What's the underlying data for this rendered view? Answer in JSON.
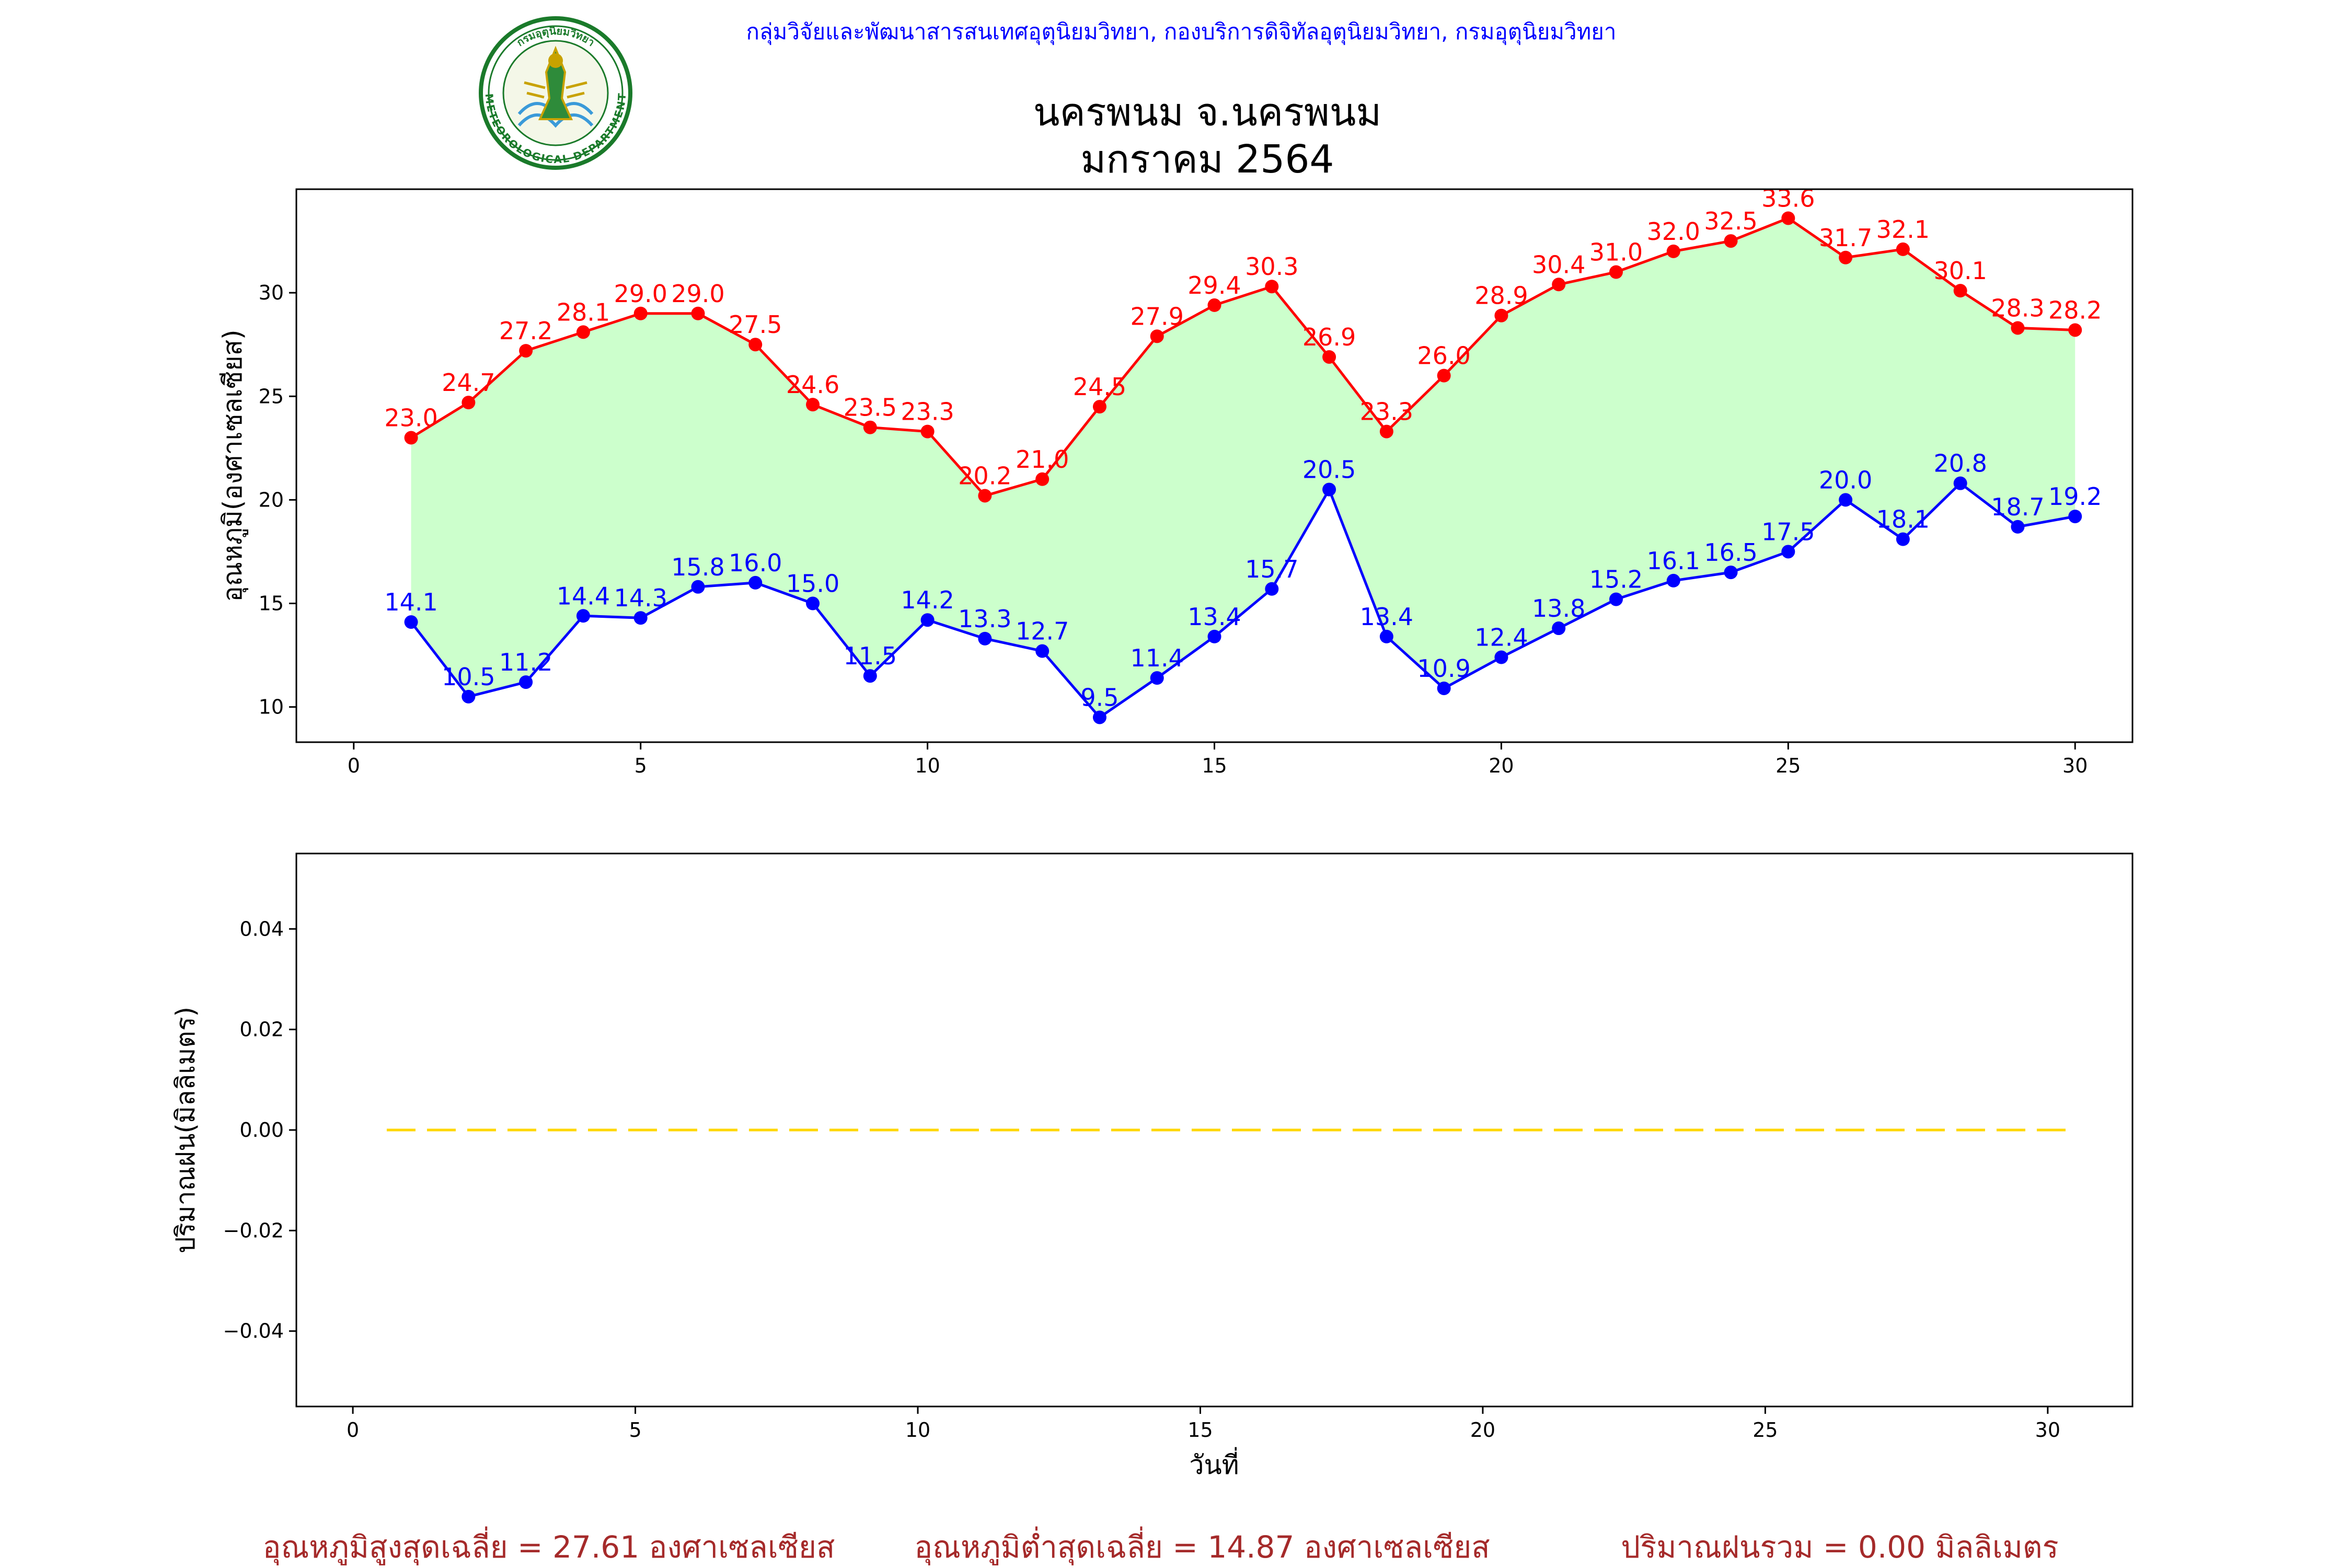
{
  "header": {
    "credit": "กลุ่มวิจัยและพัฒนาสารสนเทศอุตุนิยมวิทยา, กองบริการดิจิทัลอุตุนิยมวิทยา, กรมอุตุนิยมวิทยา",
    "title_line1": "นครพนม จ.นครพนม",
    "title_line2": "มกราคม 2564",
    "logo_top_text": "กรมอุตุนิยมวิทยา",
    "logo_bottom_text": "METEOROLOGICAL DEPARTMENT"
  },
  "colors": {
    "max_line": "#ff0000",
    "min_line": "#0000ff",
    "fill_between": "#ccffcc",
    "rain_line": "#ffd700",
    "footer_text": "#a52a2a",
    "credit_text": "#0000ff"
  },
  "chart_data": [
    {
      "type": "line",
      "ylabel": "อุณหภูมิ(องศาเซลเซียส)",
      "xlabel": "",
      "xlim": [
        -1,
        31
      ],
      "ylim": [
        8.3,
        35
      ],
      "xticks": [
        0,
        5,
        10,
        15,
        20,
        25,
        30
      ],
      "yticks": [
        10,
        15,
        20,
        25,
        30
      ],
      "grid": false,
      "fill_between": true,
      "x": [
        1,
        2,
        3,
        4,
        5,
        6,
        7,
        8,
        9,
        10,
        11,
        12,
        13,
        14,
        15,
        16,
        17,
        18,
        19,
        20,
        21,
        22,
        23,
        24,
        25,
        26,
        27,
        28,
        29,
        30
      ],
      "series": [
        {
          "id": "max",
          "values": [
            23.0,
            24.7,
            27.2,
            28.1,
            29.0,
            29.0,
            27.5,
            24.6,
            23.5,
            23.3,
            20.2,
            21.0,
            24.5,
            27.9,
            29.4,
            30.3,
            26.9,
            23.3,
            26.0,
            28.9,
            30.4,
            31.0,
            32.0,
            32.5,
            33.6,
            31.7,
            32.1,
            30.1,
            28.3,
            28.2
          ],
          "labels": [
            "23.0",
            "24.7",
            "27.2",
            "28.1",
            "29.0",
            "29.0",
            "27.5",
            "24.6",
            "23.5",
            "23.3",
            "20.2",
            "21.0",
            "24.5",
            "27.9",
            "29.4",
            "30.3",
            "26.9",
            "23.3",
            "26.0",
            "28.9",
            "30.4",
            "31.0",
            "32.0",
            "32.5",
            "33.6",
            "31.7",
            "32.1",
            "30.1",
            "28.3",
            "28.2"
          ]
        },
        {
          "id": "min",
          "values": [
            14.1,
            10.5,
            11.2,
            14.4,
            14.3,
            15.8,
            16.0,
            15.0,
            11.5,
            14.2,
            13.3,
            12.7,
            9.5,
            11.4,
            13.4,
            15.7,
            20.5,
            13.4,
            10.9,
            12.4,
            13.8,
            15.2,
            16.1,
            16.5,
            17.5,
            20.0,
            18.1,
            20.8,
            18.7,
            19.2
          ],
          "labels": [
            "14.1",
            "10.5",
            "11.2",
            "14.4",
            "14.3",
            "15.8",
            "16.0",
            "15.0",
            "11.5",
            "14.2",
            "13.3",
            "12.7",
            "9.5",
            "11.4",
            "13.4",
            "15.7",
            "20.5",
            "13.4",
            "10.9",
            "12.4",
            "13.8",
            "15.2",
            "16.1",
            "16.5",
            "17.5",
            "20.0",
            "18.1",
            "20.8",
            "18.7",
            "19.2"
          ]
        }
      ]
    },
    {
      "type": "line",
      "ylabel": "ปริมาณฝน(มิลลิเมตร)",
      "xlabel": "วันที่",
      "xlim": [
        -1,
        31.5
      ],
      "ylim": [
        -0.055,
        0.055
      ],
      "xticks": [
        0,
        5,
        10,
        15,
        20,
        25,
        30
      ],
      "yticks": [
        -0.04,
        -0.02,
        0.0,
        0.02,
        0.04
      ],
      "ytick_labels": [
        "−0.04",
        "−0.02",
        "0.00",
        "0.02",
        "0.04"
      ],
      "grid": false,
      "line_style": "dashed",
      "x": [
        0.6,
        30.4
      ],
      "series": [
        {
          "id": "rain",
          "values": [
            0.0,
            0.0
          ]
        }
      ]
    }
  ],
  "footer": {
    "avg_max": "อุณหภูมิสูงสุดเฉลี่ย = 27.61 องศาเซลเซียส",
    "avg_min": "อุณหภูมิต่ำสุดเฉลี่ย = 14.87 องศาเซลเซียส",
    "total_rain": "ปริมาณฝนรวม = 0.00 มิลลิเมตร"
  }
}
